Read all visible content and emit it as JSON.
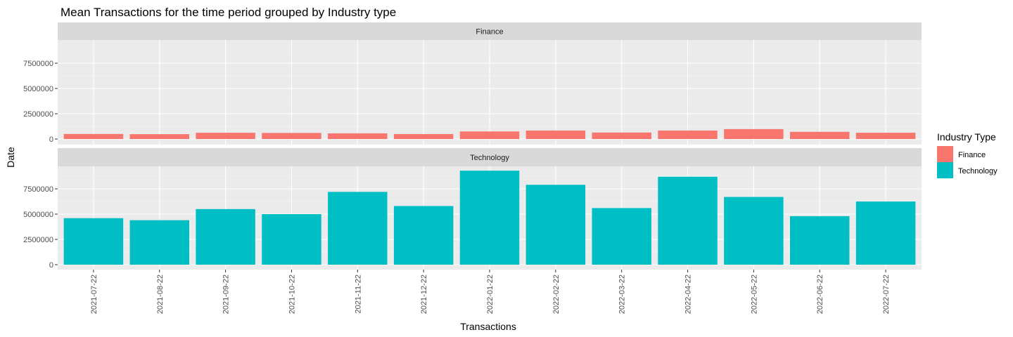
{
  "chart_data": {
    "type": "bar",
    "title": "Mean Transactions for the time period grouped by Industry type",
    "xlabel": "Transactions",
    "ylabel": "Date",
    "categories": [
      "2021-07-22",
      "2021-08-22",
      "2021-09-22",
      "2021-10-22",
      "2021-11-22",
      "2021-12-22",
      "2022-01-22",
      "2022-02-22",
      "2022-03-22",
      "2022-04-22",
      "2022-05-22",
      "2022-06-22",
      "2022-07-22"
    ],
    "ylim": [
      0,
      10000000
    ],
    "yticks": [
      0,
      2500000,
      5000000,
      7500000
    ],
    "ytick_labels": [
      "0",
      "2500000",
      "5000000",
      "7500000"
    ],
    "facets": [
      "Finance",
      "Technology"
    ],
    "series": [
      {
        "name": "Finance",
        "color": "#F8766D",
        "values": [
          500000,
          480000,
          620000,
          600000,
          560000,
          490000,
          750000,
          840000,
          640000,
          840000,
          980000,
          710000,
          620000
        ]
      },
      {
        "name": "Technology",
        "color": "#00BFC4",
        "values": [
          4600000,
          4400000,
          5500000,
          5000000,
          7200000,
          5800000,
          9300000,
          7900000,
          5600000,
          8700000,
          6700000,
          4800000,
          6250000
        ]
      }
    ],
    "legend": {
      "title": "Industry Type",
      "position": "right"
    },
    "grid": true
  }
}
